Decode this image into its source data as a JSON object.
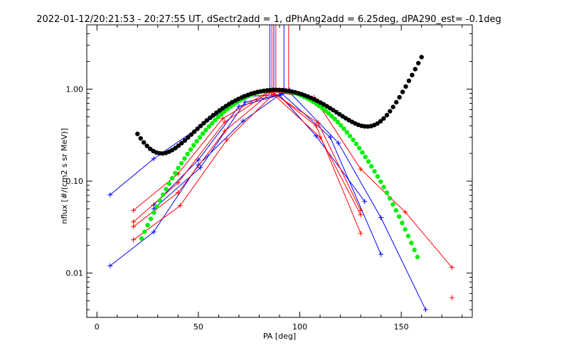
{
  "chart_data": {
    "type": "scatter",
    "title": "2022-01-12/20:21:53 - 20:27:55 UT, dSectr2add = 1, dPhAng2add = 6.25deg, dPA290_est=  -0.1deg",
    "xlabel": "PA [deg]",
    "ylabel": "nflux [#/(cm2 s sr MeV)]",
    "xlim": [
      -5,
      185
    ],
    "ylim": [
      0.0033,
      5
    ],
    "yscale": "log",
    "xticks": [
      0,
      50,
      100,
      150
    ],
    "xtick_labels": [
      "0",
      "50",
      "100",
      "150"
    ],
    "yticks": [
      0.01,
      0.1,
      1
    ],
    "ytick_labels": [
      "0.01",
      "0.10",
      "1.00"
    ],
    "grid": false,
    "vertical_markers": [
      {
        "x": 85.2,
        "color": "#0000ff"
      },
      {
        "x": 86.2,
        "color": "#ff0000"
      },
      {
        "x": 87.2,
        "color": "#0000ff"
      },
      {
        "x": 88.2,
        "color": "#ff0000"
      },
      {
        "x": 92.2,
        "color": "#0000ff"
      },
      {
        "x": 94.5,
        "color": "#ff0000"
      }
    ],
    "series": [
      {
        "color": "#0000ff",
        "x": [
          6.5,
          28,
          50,
          72,
          90,
          95
        ],
        "y": [
          0.071,
          0.175,
          0.38,
          0.83,
          0.87,
          0.98
        ]
      },
      {
        "color": "#0000ff",
        "x": [
          6.5,
          28,
          50,
          72,
          91,
          115,
          140
        ],
        "y": [
          0.012,
          0.028,
          0.15,
          0.45,
          0.9,
          0.3,
          0.016
        ]
      },
      {
        "color": "#0000ff",
        "x": [
          28,
          51,
          73,
          95,
          119,
          140,
          162
        ],
        "y": [
          0.05,
          0.14,
          0.72,
          0.92,
          0.26,
          0.04,
          0.004
        ]
      },
      {
        "color": "#0000ff",
        "x": [
          28,
          50,
          70,
          90,
          108,
          132
        ],
        "y": [
          0.055,
          0.17,
          0.65,
          0.86,
          0.31,
          0.06
        ]
      },
      {
        "color": "#ff0000",
        "x": [
          18,
          40,
          62,
          85,
          107,
          130,
          152,
          175
        ],
        "y": [
          0.048,
          0.12,
          0.48,
          0.95,
          0.81,
          0.135,
          0.046,
          0.0115
        ]
      },
      {
        "color": "#ff0000",
        "x": [
          18,
          40,
          63,
          86,
          108,
          130
        ],
        "y": [
          0.036,
          0.096,
          0.44,
          0.96,
          0.4,
          0.027
        ]
      },
      {
        "color": "#ff0000",
        "x": [
          18,
          40,
          63,
          86,
          109,
          130
        ],
        "y": [
          0.032,
          0.075,
          0.35,
          0.93,
          0.43,
          0.048
        ]
      },
      {
        "color": "#ff0000",
        "x": [
          18,
          41,
          64,
          87,
          110,
          130
        ],
        "y": [
          0.023,
          0.054,
          0.28,
          0.88,
          0.3,
          0.043
        ]
      },
      {
        "color": "#ff0000",
        "x": [
          175
        ],
        "y": [
          0.0054
        ]
      }
    ],
    "curves": [
      {
        "color": "#00ee00",
        "shape": "gaussian",
        "x": [
          22,
          158
        ],
        "center": 88,
        "peak": 0.98,
        "sigma": 24.2
      },
      {
        "color": "#000000",
        "shape": "bathtub",
        "x": [
          20,
          160
        ],
        "center": 88,
        "peak": 0.98,
        "sigma": 27.0,
        "side_amp_left": 0.095,
        "side_amp_right": 0.055,
        "side_width": 10
      }
    ]
  }
}
